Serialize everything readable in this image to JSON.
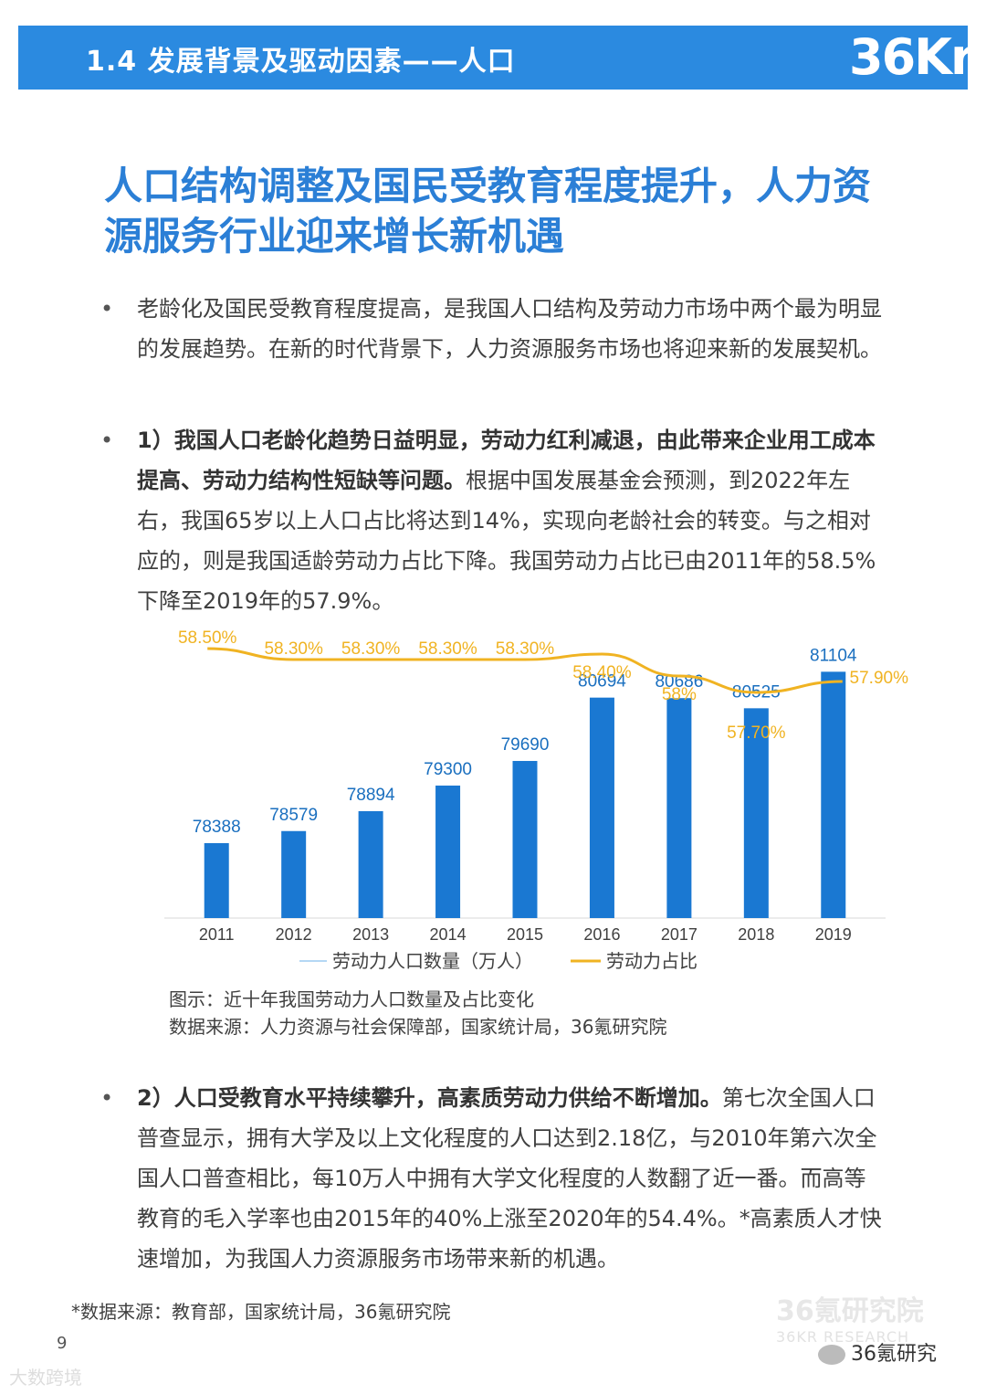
{
  "header": {
    "title": "1.4 发展背景及驱动因素——人口",
    "logo_text": "36Kr",
    "accent": "#2b8ae0"
  },
  "main_title": "人口结构调整及国民受教育程度提升，人力资源服务行业迎来增长新机遇",
  "bullets": {
    "b1": "老龄化及国民受教育程度提高，是我国人口结构及劳动力市场中两个最为明显的发展趋势。在新的时代背景下，人力资源服务市场也将迎来新的发展契机。",
    "b2_bold": "1）我国人口老龄化趋势日益明显，劳动力红利减退，由此带来企业用工成本提高、劳动力结构性短缺等问题。",
    "b2_text": "根据中国发展基金会预测，到2022年左右，我国65岁以上人口占比将达到14%，实现向老龄社会的转变。与之相对应的，则是我国适龄劳动力占比下降。我国劳动力占比已由2011年的58.5%下降至2019年的57.9%。",
    "b3_bold": "2）人口受教育水平持续攀升，高素质劳动力供给不断增加。",
    "b3_text": "第七次全国人口普查显示，拥有大学及以上文化程度的人口达到2.18亿，与2010年第六次全国人口普查相比，每10万人中拥有大学文化程度的人数翻了近一番。而高等教育的毛入学率也由2015年的40%上涨至2020年的54.4%。*高素质人才快速增加，为我国人力资源服务市场带来新的机遇。"
  },
  "chart_data": {
    "type": "bar",
    "categories": [
      "2011",
      "2012",
      "2013",
      "2014",
      "2015",
      "2016",
      "2017",
      "2018",
      "2019"
    ],
    "series": [
      {
        "name": "劳动力人口数量（万人）",
        "type": "bar",
        "values": [
          78388,
          78579,
          78894,
          79300,
          79690,
          80694,
          80686,
          80525,
          81104
        ],
        "labels": [
          "78388",
          "78579",
          "78894",
          "79300",
          "79690",
          "80694",
          "80686",
          "80525",
          "81104"
        ],
        "color": "#1a78d2"
      },
      {
        "name": "劳动力占比",
        "type": "line",
        "values": [
          58.5,
          58.3,
          58.3,
          58.3,
          58.3,
          58.4,
          58.0,
          57.7,
          57.9
        ],
        "labels": [
          "58.50%",
          "58.30%",
          "58.30%",
          "58.30%",
          "58.30%",
          "58.40%",
          "58%",
          "57.70%",
          "57.90%"
        ],
        "color": "#f0b322"
      }
    ],
    "legend_position": "bottom",
    "grid": false
  },
  "captions": {
    "figure": "图示：近十年我国劳动力人口数量及占比变化",
    "source": "数据来源：人力资源与社会保障部，国家统计局，36氪研究院"
  },
  "footnote": "*数据来源：教育部，国家统计局，36氪研究院",
  "page_number": "9",
  "watermarks": {
    "research": "36氪研究院",
    "research_sub": "36KR RESEARCH",
    "wechat": "36氪研究",
    "corner": "大数跨境"
  }
}
